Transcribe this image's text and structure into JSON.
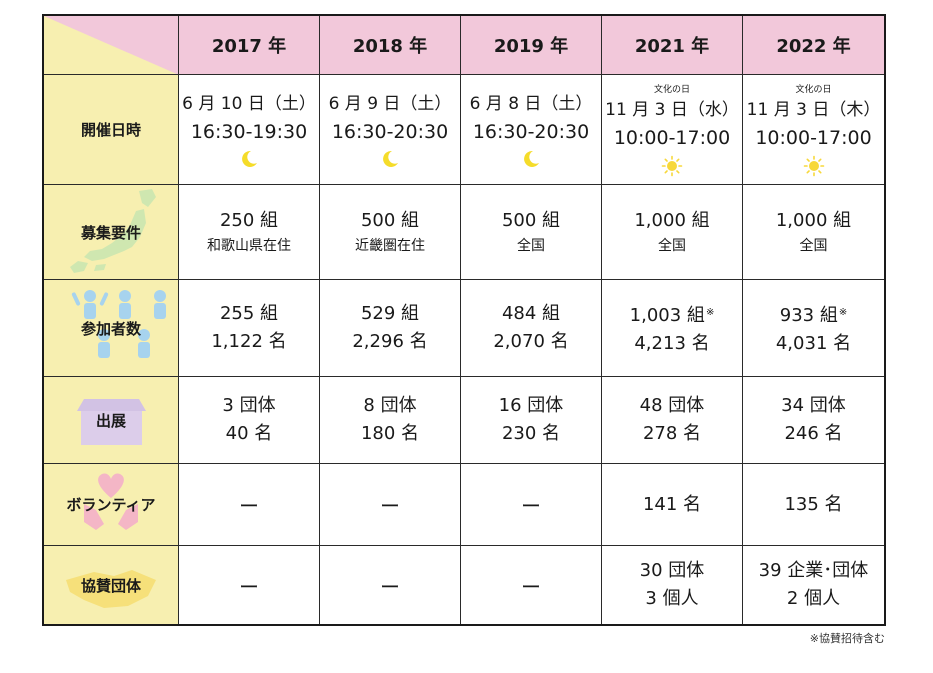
{
  "header": {
    "years": [
      "2017 年",
      "2018 年",
      "2019 年",
      "2021 年",
      "2022 年"
    ]
  },
  "rows": {
    "dates": {
      "label": "開催日時",
      "cells": [
        {
          "note": "",
          "date": "6 月 10 日（土）",
          "time": "16:30-19:30",
          "icon": "moon-icon"
        },
        {
          "note": "",
          "date": "6 月 9 日（土）",
          "time": "16:30-20:30",
          "icon": "moon-icon"
        },
        {
          "note": "",
          "date": "6 月 8 日（土）",
          "time": "16:30-20:30",
          "icon": "moon-icon"
        },
        {
          "note": "文化の日",
          "date": "11 月 3 日（水）",
          "time": "10:00-17:00",
          "icon": "sun-icon"
        },
        {
          "note": "文化の日",
          "date": "11 月 3 日（木）",
          "time": "10:00-17:00",
          "icon": "sun-icon"
        }
      ]
    },
    "recruit": {
      "label": "募集要件",
      "cells": [
        {
          "count": "250 組",
          "area": "和歌山県在住"
        },
        {
          "count": "500 組",
          "area": "近畿圏在住"
        },
        {
          "count": "500 組",
          "area": "全国"
        },
        {
          "count": "1,000 組",
          "area": "全国"
        },
        {
          "count": "1,000 組",
          "area": "全国"
        }
      ]
    },
    "participants": {
      "label": "参加者数",
      "cells": [
        {
          "groups": "255 組",
          "mark": "",
          "people": "1,122 名"
        },
        {
          "groups": "529 組",
          "mark": "",
          "people": "2,296 名"
        },
        {
          "groups": "484 組",
          "mark": "",
          "people": "2,070 名"
        },
        {
          "groups": "1,003 組",
          "mark": "※",
          "people": "4,213 名"
        },
        {
          "groups": "933 組",
          "mark": "※",
          "people": "4,031 名"
        }
      ]
    },
    "exhibit": {
      "label": "出展",
      "cells": [
        {
          "orgs": "3 団体",
          "people": "40 名"
        },
        {
          "orgs": "8 団体",
          "people": "180 名"
        },
        {
          "orgs": "16 団体",
          "people": "230 名"
        },
        {
          "orgs": "48 団体",
          "people": "278 名"
        },
        {
          "orgs": "34 団体",
          "people": "246 名"
        }
      ]
    },
    "volunteer": {
      "label": "ボランティア",
      "cells": [
        "ー",
        "ー",
        "ー",
        "141 名",
        "135 名"
      ]
    },
    "sponsor": {
      "label": "協賛団体",
      "cells": [
        {
          "a": "ー",
          "b": ""
        },
        {
          "a": "ー",
          "b": ""
        },
        {
          "a": "ー",
          "b": ""
        },
        {
          "a": "30 団体",
          "b": "3 個人"
        },
        {
          "a": "39 企業･団体",
          "b": "2 個人"
        }
      ]
    }
  },
  "footnote": "※協賛招待含む",
  "colors": {
    "header_bg": "#f2c8da",
    "label_bg": "#f7efb0",
    "moon": "#f5dc2a",
    "sun": "#f7d83a"
  }
}
